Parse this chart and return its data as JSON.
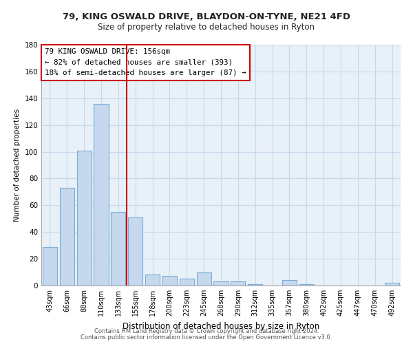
{
  "title1": "79, KING OSWALD DRIVE, BLAYDON-ON-TYNE, NE21 4FD",
  "title2": "Size of property relative to detached houses in Ryton",
  "xlabel": "Distribution of detached houses by size in Ryton",
  "ylabel": "Number of detached properties",
  "bar_labels": [
    "43sqm",
    "66sqm",
    "88sqm",
    "110sqm",
    "133sqm",
    "155sqm",
    "178sqm",
    "200sqm",
    "223sqm",
    "245sqm",
    "268sqm",
    "290sqm",
    "312sqm",
    "335sqm",
    "357sqm",
    "380sqm",
    "402sqm",
    "425sqm",
    "447sqm",
    "470sqm",
    "492sqm"
  ],
  "bar_values": [
    29,
    73,
    101,
    136,
    55,
    51,
    8,
    7,
    5,
    10,
    3,
    3,
    1,
    0,
    4,
    1,
    0,
    0,
    0,
    0,
    2
  ],
  "bar_color": "#c5d8ee",
  "bar_edge_color": "#7aadd4",
  "vline_color": "#cc0000",
  "ylim": [
    0,
    180
  ],
  "yticks": [
    0,
    20,
    40,
    60,
    80,
    100,
    120,
    140,
    160,
    180
  ],
  "annotation_title": "79 KING OSWALD DRIVE: 156sqm",
  "annotation_line1": "← 82% of detached houses are smaller (393)",
  "annotation_line2": "18% of semi-detached houses are larger (87) →",
  "annotation_box_color": "#ffffff",
  "annotation_box_edge": "#cc0000",
  "footer1": "Contains HM Land Registry data © Crown copyright and database right 2024.",
  "footer2": "Contains public sector information licensed under the Open Government Licence v3.0.",
  "background_color": "#ffffff",
  "plot_bg_color": "#e8f0f8",
  "grid_color": "#c8d8ec"
}
